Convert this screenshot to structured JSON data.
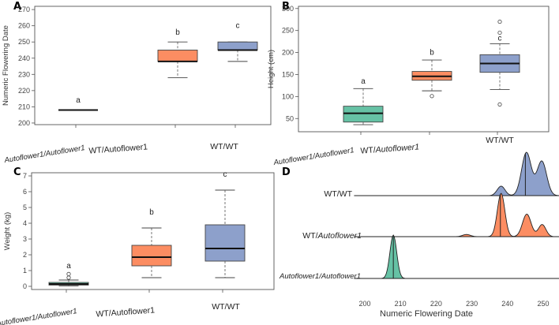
{
  "colors": {
    "green": "#66c2a5",
    "orange": "#fc8d62",
    "blue": "#8da0cb",
    "axis": "#555555",
    "text": "#333333"
  },
  "chart_data": [
    {
      "panel": "A",
      "type": "box",
      "ylabel": "Numeric Flowering Date",
      "ylim": [
        199,
        272
      ],
      "yticks": [
        200,
        210,
        220,
        230,
        240,
        250,
        260,
        270
      ],
      "categories": [
        "Autoflower1/Autoflower1",
        "WT/Autoflower1",
        "WT/WT"
      ],
      "category_parts": [
        {
          "left": "Autoflower1",
          "sep": "/",
          "right": "Autoflower1",
          "left_italic": true,
          "right_italic": true
        },
        {
          "left": "WT",
          "sep": "/",
          "right": "Autoflower1",
          "left_italic": false,
          "right_italic": false
        },
        {
          "left": "WT",
          "sep": "/",
          "right": "WT",
          "left_italic": false,
          "right_italic": false
        }
      ],
      "boxes": [
        {
          "min": 208,
          "q1": 208,
          "median": 208,
          "q3": 208,
          "max": 208,
          "outliers": [],
          "letter": "a",
          "letter_at": 214,
          "color": "#66c2a5"
        },
        {
          "min": 228,
          "q1": 238,
          "median": 238,
          "q3": 245,
          "max": 250,
          "outliers": [],
          "letter": "b",
          "letter_at": 256,
          "color": "#fc8d62"
        },
        {
          "min": 238,
          "q1": 245,
          "median": 245,
          "q3": 250,
          "max": 250,
          "outliers": [],
          "letter": "c",
          "letter_at": 260,
          "color": "#8da0cb"
        }
      ]
    },
    {
      "panel": "B",
      "type": "box",
      "ylabel": "Height (cm)",
      "ylim": [
        20,
        305
      ],
      "yticks": [
        50,
        100,
        150,
        200,
        250,
        300
      ],
      "categories": [
        "Autoflower1/Autoflower1",
        "WT/Autoflower1",
        "WT/WT"
      ],
      "category_parts": [
        {
          "left": "Autoflower1",
          "sep": "/",
          "right": "Autoflower1",
          "left_italic": true,
          "right_italic": true
        },
        {
          "left": "WT",
          "sep": "/",
          "right": "Autoflower1",
          "left_italic": false,
          "right_italic": true
        },
        {
          "left": "WT",
          "sep": "/",
          "right": "WT",
          "left_italic": false,
          "right_italic": false
        }
      ],
      "boxes": [
        {
          "min": 36,
          "q1": 42,
          "median": 62,
          "q3": 78,
          "max": 118,
          "outliers": [],
          "letter": "a",
          "letter_at": 135,
          "color": "#66c2a5"
        },
        {
          "min": 113,
          "q1": 137,
          "median": 146,
          "q3": 157,
          "max": 183,
          "outliers": [
            101
          ],
          "letter": "b",
          "letter_at": 200,
          "color": "#fc8d62"
        },
        {
          "min": 116,
          "q1": 155,
          "median": 175,
          "q3": 195,
          "max": 220,
          "outliers": [
            270,
            245,
            82
          ],
          "letter": "c",
          "letter_at": 232,
          "color": "#8da0cb"
        }
      ]
    },
    {
      "panel": "C",
      "type": "box",
      "ylabel": "Weight (kg)",
      "ylim": [
        -0.2,
        7.2
      ],
      "yticks": [
        0,
        1,
        2,
        3,
        4,
        5,
        6,
        7
      ],
      "categories": [
        "Autoflower1/Autoflower1",
        "WT/Autoflower1",
        "WT/WT"
      ],
      "category_parts": [
        {
          "left": "Autoflower1",
          "sep": "/",
          "right": "Autoflower1",
          "left_italic": true,
          "right_italic": true
        },
        {
          "left": "WT",
          "sep": "/",
          "right": "Autoflower1",
          "left_italic": false,
          "right_italic": false
        },
        {
          "left": "WT",
          "sep": "/",
          "right": "WT",
          "left_italic": false,
          "right_italic": false
        }
      ],
      "boxes": [
        {
          "min": 0.02,
          "q1": 0.08,
          "median": 0.15,
          "q3": 0.25,
          "max": 0.4,
          "outliers": [
            0.55,
            0.78
          ],
          "letter": "a",
          "letter_at": 1.3,
          "color": "#66c2a5"
        },
        {
          "min": 0.55,
          "q1": 1.3,
          "median": 1.85,
          "q3": 2.6,
          "max": 3.7,
          "outliers": [],
          "letter": "b",
          "letter_at": 4.7,
          "color": "#fc8d62"
        },
        {
          "min": 0.55,
          "q1": 1.6,
          "median": 2.4,
          "q3": 3.9,
          "max": 6.1,
          "outliers": [],
          "letter": "c",
          "letter_at": 7.1,
          "color": "#8da0cb"
        }
      ]
    },
    {
      "panel": "D",
      "type": "ridgeline",
      "xlabel": "Numeric Flowering Date",
      "xlim": [
        197,
        256
      ],
      "xticks": [
        200,
        210,
        220,
        230,
        240,
        250
      ],
      "ridges": [
        {
          "label_parts": {
            "left": "WT",
            "sep": "/",
            "right": "WT",
            "left_italic": false,
            "right_italic": false
          },
          "color": "#8da0cb",
          "median": 245,
          "peaks": [
            {
              "center": 238.2,
              "sd": 1.1,
              "height": 0.22
            },
            {
              "center": 245.3,
              "sd": 1.35,
              "height": 1.0
            },
            {
              "center": 249.6,
              "sd": 1.35,
              "height": 0.8
            }
          ]
        },
        {
          "label_parts": {
            "left": "WT",
            "sep": "/",
            "right": "Autoflower1",
            "left_italic": false,
            "right_italic": true
          },
          "color": "#fc8d62",
          "median": 238,
          "peaks": [
            {
              "center": 228.5,
              "sd": 1.1,
              "height": 0.05
            },
            {
              "center": 238.2,
              "sd": 1.05,
              "height": 1.0
            },
            {
              "center": 245.4,
              "sd": 1.2,
              "height": 0.52
            },
            {
              "center": 249.7,
              "sd": 1.05,
              "height": 0.28
            }
          ]
        },
        {
          "label_parts": {
            "left": "Autoflower1",
            "sep": "/",
            "right": "Autoflower1",
            "left_italic": true,
            "right_italic": true
          },
          "color": "#66c2a5",
          "median": 208,
          "peaks": [
            {
              "center": 208.0,
              "sd": 0.95,
              "height": 1.0
            }
          ]
        }
      ]
    }
  ]
}
